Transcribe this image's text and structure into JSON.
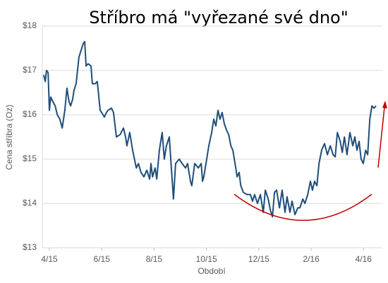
{
  "chart_data": {
    "type": "line",
    "title": "Stříbro má \"vyřezané své dno\"",
    "x_label": "Období",
    "y_label": "Cena stříbra (Oz)",
    "color": "#1f4e79",
    "grid": true,
    "xlim": [
      -0.27,
      12.72
    ],
    "xticks": [
      {
        "value": 0,
        "label": "4/15"
      },
      {
        "value": 2,
        "label": "6/15"
      },
      {
        "value": 4,
        "label": "8/15"
      },
      {
        "value": 6,
        "label": "10/15"
      },
      {
        "value": 8,
        "label": "12/15"
      },
      {
        "value": 10,
        "label": "2/16"
      },
      {
        "value": 12,
        "label": "4/16"
      }
    ],
    "ylim": [
      13,
      18
    ],
    "yticks": [
      {
        "value": 13,
        "label": "$13"
      },
      {
        "value": 14,
        "label": "$14"
      },
      {
        "value": 15,
        "label": "$15"
      },
      {
        "value": 16,
        "label": "$16"
      },
      {
        "value": 17,
        "label": "$17"
      },
      {
        "value": 18,
        "label": "$18"
      }
    ],
    "x": [
      -0.22,
      -0.16,
      -0.11,
      -0.05,
      0.0,
      0.05,
      0.13,
      0.22,
      0.3,
      0.4,
      0.49,
      0.59,
      0.67,
      0.75,
      0.81,
      0.89,
      0.94,
      1.02,
      1.13,
      1.21,
      1.29,
      1.35,
      1.4,
      1.48,
      1.59,
      1.64,
      1.75,
      1.83,
      1.94,
      2.05,
      2.1,
      2.18,
      2.24,
      2.37,
      2.45,
      2.56,
      2.7,
      2.83,
      2.91,
      2.96,
      3.07,
      3.18,
      3.32,
      3.4,
      3.5,
      3.61,
      3.72,
      3.83,
      3.88,
      3.94,
      4.04,
      4.1,
      4.2,
      4.31,
      4.39,
      4.47,
      4.58,
      4.66,
      4.74,
      4.82,
      4.96,
      5.07,
      5.2,
      5.28,
      5.39,
      5.44,
      5.55,
      5.69,
      5.8,
      5.85,
      5.9,
      6.01,
      6.09,
      6.2,
      6.28,
      6.36,
      6.44,
      6.52,
      6.6,
      6.68,
      6.77,
      6.85,
      6.93,
      7.01,
      7.12,
      7.17,
      7.25,
      7.31,
      7.41,
      7.55,
      7.68,
      7.76,
      7.84,
      7.95,
      8.06,
      8.17,
      8.25,
      8.36,
      8.44,
      8.52,
      8.6,
      8.68,
      8.79,
      8.89,
      9.0,
      9.08,
      9.19,
      9.27,
      9.38,
      9.49,
      9.57,
      9.68,
      9.76,
      9.87,
      9.97,
      10.05,
      10.13,
      10.22,
      10.3,
      10.4,
      10.51,
      10.62,
      10.73,
      10.84,
      10.92,
      11.0,
      11.11,
      11.19,
      11.27,
      11.37,
      11.48,
      11.59,
      11.67,
      11.75,
      11.83,
      11.91,
      11.99,
      12.08,
      12.16,
      12.24,
      12.32,
      12.4,
      12.48
    ],
    "values": [
      16.9,
      16.75,
      17.0,
      16.95,
      16.1,
      16.4,
      16.3,
      16.2,
      16.0,
      15.9,
      15.7,
      16.1,
      16.6,
      16.3,
      16.2,
      16.35,
      16.55,
      16.7,
      17.3,
      17.45,
      17.6,
      17.65,
      17.1,
      17.15,
      17.1,
      16.7,
      16.7,
      16.75,
      16.1,
      16.0,
      15.95,
      16.05,
      16.1,
      16.15,
      16.05,
      15.5,
      15.55,
      15.7,
      15.5,
      15.3,
      15.6,
      15.2,
      14.8,
      14.9,
      14.7,
      14.6,
      14.75,
      14.55,
      14.9,
      14.6,
      14.8,
      14.55,
      15.2,
      15.6,
      15.0,
      15.3,
      15.5,
      14.8,
      14.1,
      14.9,
      15.0,
      14.9,
      14.8,
      14.9,
      14.5,
      14.4,
      14.9,
      14.8,
      14.9,
      14.5,
      14.6,
      15.0,
      15.3,
      15.6,
      15.9,
      15.75,
      16.1,
      15.9,
      16.05,
      15.8,
      15.65,
      15.55,
      15.3,
      15.2,
      14.8,
      14.6,
      14.7,
      14.4,
      14.25,
      14.2,
      14.2,
      14.05,
      14.2,
      14.0,
      14.2,
      13.8,
      14.3,
      14.1,
      13.85,
      13.7,
      14.25,
      14.3,
      13.9,
      14.3,
      13.8,
      14.15,
      13.8,
      14.05,
      13.75,
      13.9,
      13.9,
      14.1,
      14.0,
      14.2,
      14.5,
      14.3,
      14.5,
      14.4,
      14.9,
      15.2,
      15.35,
      15.1,
      15.3,
      15.1,
      15.05,
      15.6,
      15.4,
      15.15,
      15.5,
      15.1,
      15.6,
      15.3,
      15.5,
      15.2,
      15.4,
      15.0,
      14.9,
      15.2,
      15.1,
      15.9,
      16.2,
      16.15,
      16.2
    ]
  }
}
